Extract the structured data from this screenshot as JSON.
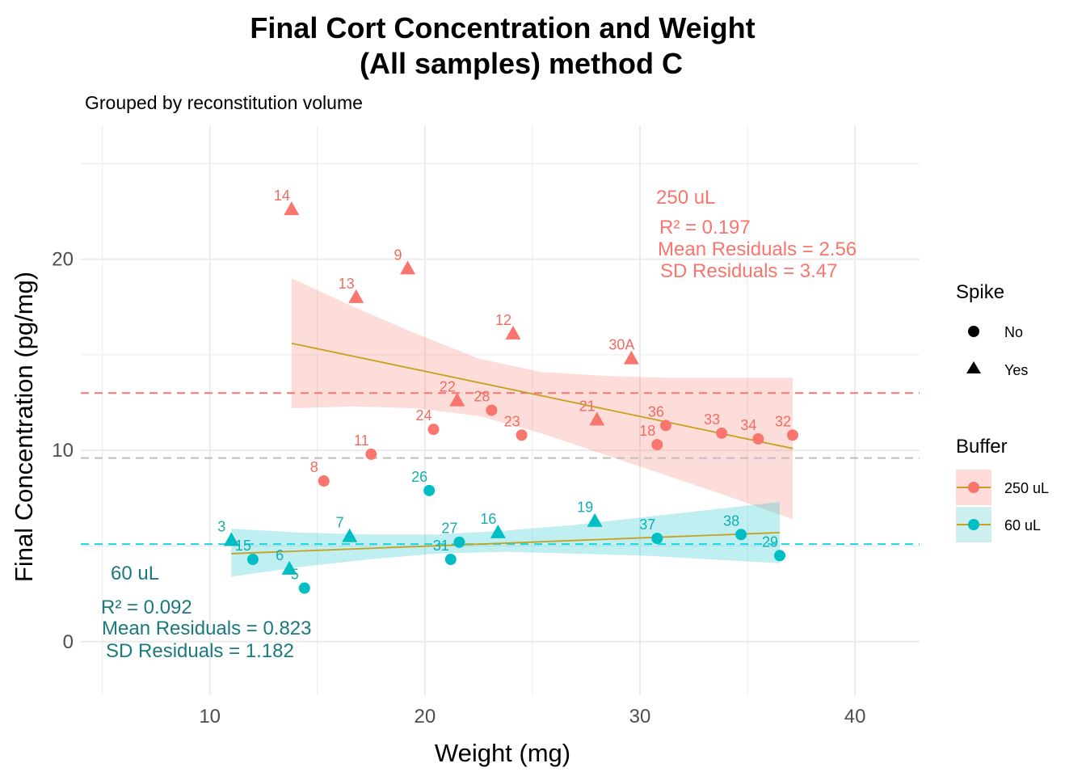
{
  "chart_data": {
    "type": "scatter",
    "title_line1": "Final Cort Concentration and Weight",
    "title_line2": "(All samples) method C",
    "subtitle": "Grouped by reconstitution volume",
    "xlabel": "Weight (mg)",
    "ylabel": "Final Concentration (pg/mg)",
    "xlim": [
      4,
      43
    ],
    "ylim": [
      -2.8,
      27
    ],
    "x_ticks": [
      10,
      20,
      30,
      40
    ],
    "y_ticks": [
      0,
      10,
      20
    ],
    "grid": true,
    "colors": {
      "250 uL": "#F8766D",
      "60 uL": "#00BFC4",
      "fit": "#C8A020",
      "mean_line": "#BEBEBE"
    },
    "series": [
      {
        "name": "250 uL",
        "points": [
          {
            "label": "14",
            "x": 13.8,
            "y": 22.6,
            "spike": "Yes"
          },
          {
            "label": "9",
            "x": 19.2,
            "y": 19.5,
            "spike": "Yes"
          },
          {
            "label": "13",
            "x": 16.8,
            "y": 18.0,
            "spike": "Yes"
          },
          {
            "label": "12",
            "x": 24.1,
            "y": 16.1,
            "spike": "Yes"
          },
          {
            "label": "30A",
            "x": 29.6,
            "y": 14.8,
            "spike": "Yes"
          },
          {
            "label": "22",
            "x": 21.5,
            "y": 12.6,
            "spike": "Yes"
          },
          {
            "label": "28",
            "x": 23.1,
            "y": 12.1,
            "spike": "No"
          },
          {
            "label": "24",
            "x": 20.4,
            "y": 11.1,
            "spike": "No"
          },
          {
            "label": "23",
            "x": 24.5,
            "y": 10.8,
            "spike": "No"
          },
          {
            "label": "21",
            "x": 28.0,
            "y": 11.6,
            "spike": "Yes"
          },
          {
            "label": "36",
            "x": 31.2,
            "y": 11.3,
            "spike": "No"
          },
          {
            "label": "18",
            "x": 30.8,
            "y": 10.3,
            "spike": "No"
          },
          {
            "label": "33",
            "x": 33.8,
            "y": 10.9,
            "spike": "No"
          },
          {
            "label": "34",
            "x": 35.5,
            "y": 10.6,
            "spike": "No"
          },
          {
            "label": "32",
            "x": 37.1,
            "y": 10.8,
            "spike": "No"
          },
          {
            "label": "11",
            "x": 17.5,
            "y": 9.8,
            "spike": "No"
          },
          {
            "label": "8",
            "x": 15.3,
            "y": 8.4,
            "spike": "No"
          }
        ],
        "fit": {
          "x": [
            13.8,
            37.1
          ],
          "y": [
            15.6,
            10.1
          ]
        },
        "band": {
          "x": [
            13.8,
            16.7,
            19.6,
            22.5,
            25.4,
            28.3,
            31.2,
            34.1,
            37.1
          ],
          "upper": [
            19.0,
            17.5,
            16.1,
            14.8,
            14.1,
            13.9,
            13.8,
            13.8,
            13.8
          ],
          "lower": [
            12.2,
            12.3,
            12.2,
            11.8,
            10.9,
            9.8,
            8.7,
            7.6,
            6.4
          ]
        },
        "mean": 13.0,
        "annotation": {
          "group": "250 uL",
          "r2": "R² = 0.197",
          "mean_res": "Mean Residuals = 2.56",
          "sd_res": "SD Residuals = 3.47"
        }
      },
      {
        "name": "60 uL",
        "points": [
          {
            "label": "26",
            "x": 20.2,
            "y": 7.9,
            "spike": "No"
          },
          {
            "label": "19",
            "x": 27.9,
            "y": 6.3,
            "spike": "Yes"
          },
          {
            "label": "16",
            "x": 23.4,
            "y": 5.7,
            "spike": "Yes"
          },
          {
            "label": "38",
            "x": 34.7,
            "y": 5.6,
            "spike": "No"
          },
          {
            "label": "37",
            "x": 30.8,
            "y": 5.4,
            "spike": "No"
          },
          {
            "label": "7",
            "x": 16.5,
            "y": 5.5,
            "spike": "Yes"
          },
          {
            "label": "3",
            "x": 11.0,
            "y": 5.3,
            "spike": "Yes"
          },
          {
            "label": "27",
            "x": 21.6,
            "y": 5.2,
            "spike": "No"
          },
          {
            "label": "15",
            "x": 12.0,
            "y": 4.3,
            "spike": "No"
          },
          {
            "label": "31",
            "x": 21.2,
            "y": 4.3,
            "spike": "No"
          },
          {
            "label": "29",
            "x": 36.5,
            "y": 4.5,
            "spike": "No"
          },
          {
            "label": "6",
            "x": 13.7,
            "y": 3.8,
            "spike": "Yes"
          },
          {
            "label": "5",
            "x": 14.4,
            "y": 2.8,
            "spike": "No"
          }
        ],
        "fit": {
          "x": [
            11.0,
            36.5
          ],
          "y": [
            4.6,
            5.7
          ]
        },
        "band": {
          "x": [
            11.0,
            14.2,
            17.4,
            20.5,
            23.7,
            26.9,
            30.1,
            33.3,
            36.5
          ],
          "upper": [
            5.9,
            5.7,
            5.6,
            5.6,
            5.8,
            6.1,
            6.5,
            6.9,
            7.3
          ],
          "lower": [
            3.4,
            3.9,
            4.3,
            4.6,
            4.7,
            4.6,
            4.5,
            4.3,
            4.1
          ]
        },
        "mean": 5.1,
        "annotation": {
          "group": "60 uL",
          "r2": "R² = 0.092",
          "mean_res": "Mean Residuals = 0.823",
          "sd_res": "SD Residuals = 1.182"
        }
      }
    ],
    "overall_mean": 9.6,
    "legend": {
      "spike_title": "Spike",
      "spike_items": [
        {
          "label": "No",
          "shape": "circle"
        },
        {
          "label": "Yes",
          "shape": "triangle"
        }
      ],
      "buffer_title": "Buffer",
      "buffer_items": [
        {
          "label": "250 uL",
          "color": "#F8766D"
        },
        {
          "label": "60 uL",
          "color": "#00BFC4"
        }
      ],
      "placement": "right"
    }
  }
}
